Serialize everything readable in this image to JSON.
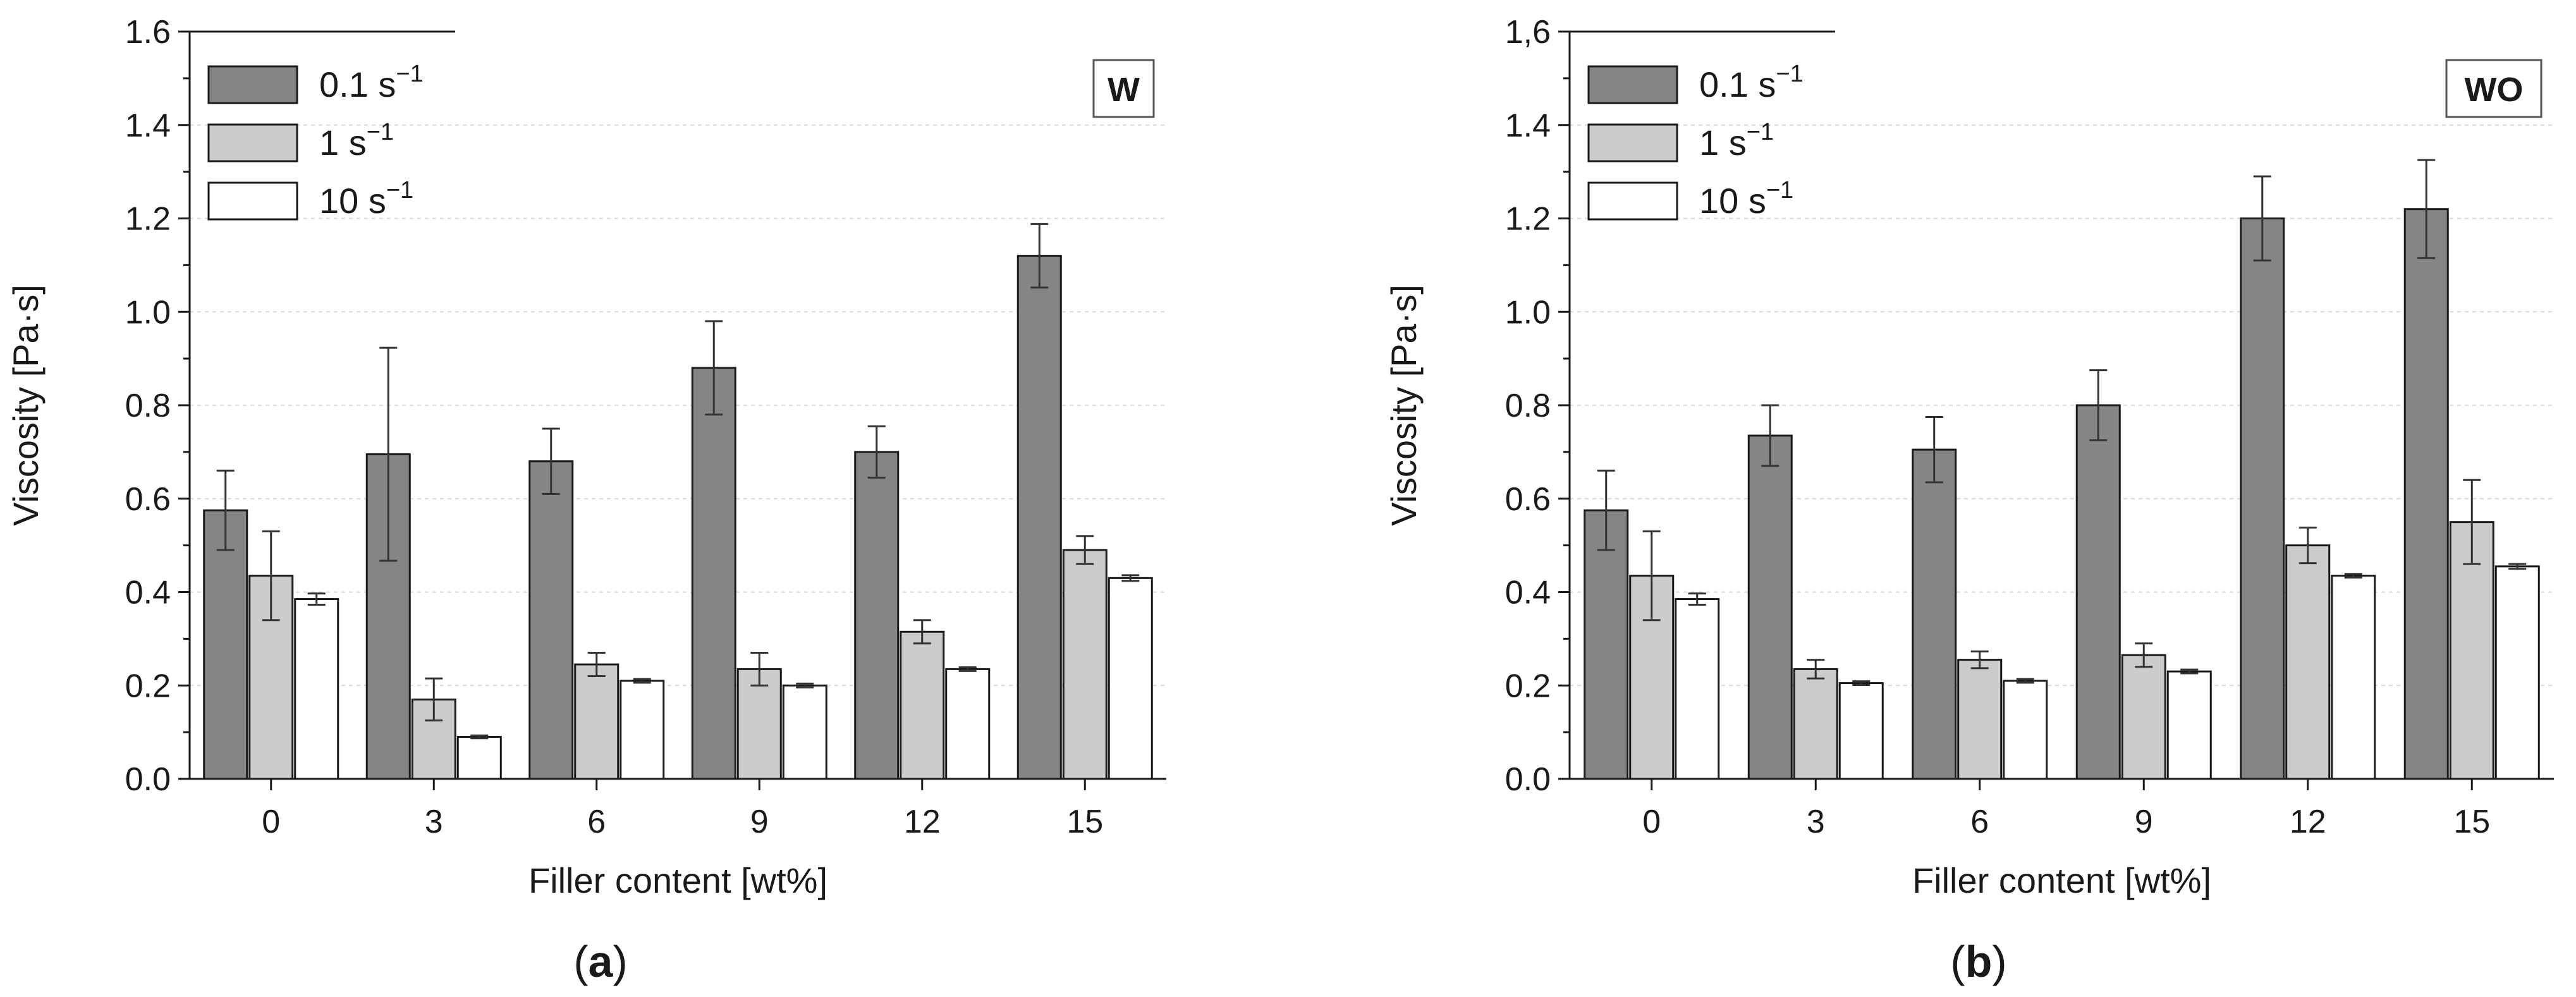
{
  "chart_data": [
    {
      "type": "bar",
      "panel_label": "a",
      "tag": "W",
      "xlabel": "Filler content  [wt%]",
      "ylabel": "Viscosity  [Pa·s]",
      "ylim": [
        0,
        1.6
      ],
      "yticks": [
        "0.0",
        "0.2",
        "0.4",
        "0.6",
        "0.8",
        "1.0",
        "1.2",
        "1.4",
        "1.6"
      ],
      "categories": [
        "0",
        "3",
        "6",
        "9",
        "12",
        "15"
      ],
      "grid": true,
      "legend_position": "top-left",
      "series": [
        {
          "name": "0.1 s",
          "name_sup": "−1",
          "color": "#858585",
          "values": [
            0.575,
            0.695,
            0.68,
            0.88,
            0.7,
            1.12
          ],
          "errors": [
            0.085,
            0.228,
            0.07,
            0.1,
            0.055,
            0.068
          ]
        },
        {
          "name": "1 s",
          "name_sup": "−1",
          "color": "#cccccc",
          "values": [
            0.435,
            0.17,
            0.245,
            0.235,
            0.315,
            0.49
          ],
          "errors": [
            0.095,
            0.045,
            0.025,
            0.035,
            0.025,
            0.03
          ]
        },
        {
          "name": "10 s",
          "name_sup": "−1",
          "color": "#ffffff",
          "values": [
            0.385,
            0.09,
            0.21,
            0.2,
            0.235,
            0.43
          ],
          "errors": [
            0.012,
            0.003,
            0.004,
            0.004,
            0.004,
            0.006
          ]
        }
      ]
    },
    {
      "type": "bar",
      "panel_label": "b",
      "tag": "WO",
      "xlabel": "Filler content  [wt%]",
      "ylabel": "Viscosity  [Pa·s]",
      "ylim": [
        0,
        1.6
      ],
      "yticks": [
        "0.0",
        "0.2",
        "0.4",
        "0.6",
        "0.8",
        "1.0",
        "1.2",
        "1.4",
        "1,6"
      ],
      "categories": [
        "0",
        "3",
        "6",
        "9",
        "12",
        "15"
      ],
      "grid": true,
      "legend_position": "top-left",
      "series": [
        {
          "name": "0.1 s",
          "name_sup": "−1",
          "color": "#858585",
          "values": [
            0.575,
            0.735,
            0.705,
            0.8,
            1.2,
            1.22
          ],
          "errors": [
            0.085,
            0.065,
            0.07,
            0.075,
            0.09,
            0.105
          ]
        },
        {
          "name": "1 s",
          "name_sup": "−1",
          "color": "#cccccc",
          "values": [
            0.435,
            0.235,
            0.255,
            0.265,
            0.5,
            0.55
          ],
          "errors": [
            0.095,
            0.02,
            0.018,
            0.025,
            0.038,
            0.09
          ]
        },
        {
          "name": "10 s",
          "name_sup": "−1",
          "color": "#ffffff",
          "values": [
            0.385,
            0.205,
            0.21,
            0.23,
            0.435,
            0.455
          ],
          "errors": [
            0.012,
            0.004,
            0.004,
            0.004,
            0.004,
            0.005
          ]
        }
      ]
    }
  ]
}
